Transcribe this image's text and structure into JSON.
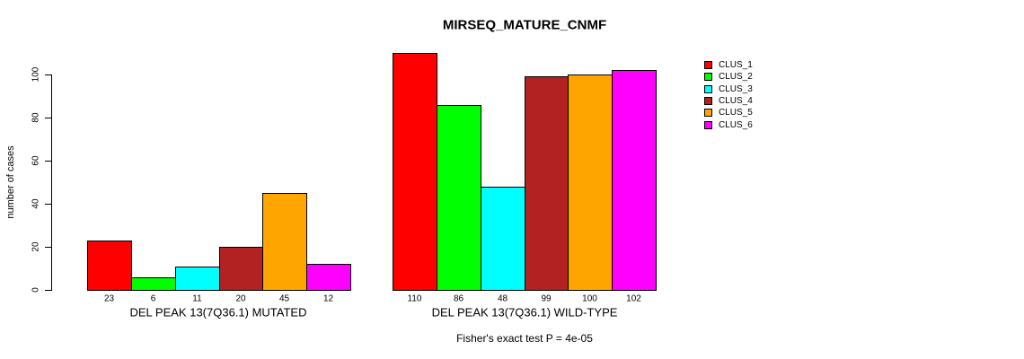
{
  "chart_data": {
    "type": "bar",
    "title": "MIRSEQ_MATURE_CNMF",
    "ylabel": "number of cases",
    "xlabel": "",
    "ylim": [
      0,
      110
    ],
    "yticks": [
      0,
      20,
      40,
      60,
      80,
      100
    ],
    "grid": false,
    "legend_position": "right-top",
    "legend": [
      {
        "label": "CLUS_1",
        "color": "#FF0000"
      },
      {
        "label": "CLUS_2",
        "color": "#00FF00"
      },
      {
        "label": "CLUS_3",
        "color": "#00FFFF"
      },
      {
        "label": "CLUS_4",
        "color": "#B22222"
      },
      {
        "label": "CLUS_5",
        "color": "#FFA500"
      },
      {
        "label": "CLUS_6",
        "color": "#FF00FF"
      }
    ],
    "groups": [
      {
        "xlabel": "DEL PEAK 13(7Q36.1) MUTATED",
        "values": [
          23,
          6,
          11,
          20,
          45,
          12
        ]
      },
      {
        "xlabel": "DEL PEAK 13(7Q36.1) WILD-TYPE",
        "values": [
          110,
          86,
          48,
          99,
          100,
          102
        ]
      }
    ],
    "annotation": "Fisher's exact test P = 4e-05",
    "colors": {
      "background": "#FFFFFF",
      "axis": "#000000",
      "text": "#000000"
    }
  }
}
